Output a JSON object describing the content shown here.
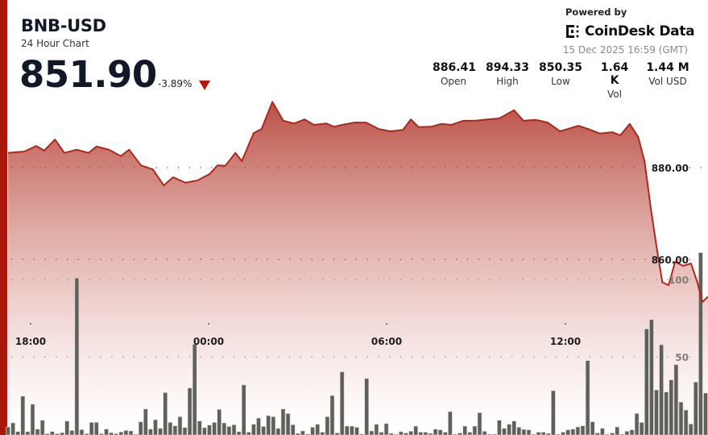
{
  "header": {
    "symbol": "BNB-USD",
    "subtitle": "24 Hour Chart",
    "price": "851.90",
    "change": "-3.89%",
    "change_direction": "down",
    "powered_by": "Powered by",
    "brand": "CoinDesk Data",
    "timestamp": "15 Dec 2025 16:59 (GMT)"
  },
  "stats": [
    {
      "value": "886.41",
      "label": "Open"
    },
    {
      "value": "894.33",
      "label": "High"
    },
    {
      "value": "850.35",
      "label": "Low"
    },
    {
      "value": "1.64 K",
      "label": "Vol"
    },
    {
      "value": "1.44 M",
      "label": "Vol USD"
    }
  ],
  "colors": {
    "accent": "#a8190c",
    "line": "#b1261a",
    "fill_top": "#b6463b",
    "volume_bar": "#5f605b",
    "down": "#b5160b"
  },
  "chart_data": {
    "type": "area",
    "price_axis": {
      "ticks": [
        "880.00",
        "860.00"
      ],
      "tick_values": [
        880,
        860
      ]
    },
    "volume_axis": {
      "ticks": [
        "100",
        "50"
      ],
      "tick_values": [
        100,
        50
      ]
    },
    "x_ticks": [
      "18:00",
      "00:00",
      "06:00",
      "12:00"
    ],
    "grid": true,
    "price_series": {
      "x": [
        "17:14",
        "17:47",
        "18:11",
        "18:27",
        "18:49",
        "19:08",
        "19:33",
        "19:57",
        "20:13",
        "20:38",
        "21:02",
        "21:19",
        "21:43",
        "22:07",
        "22:29",
        "22:48",
        "23:13",
        "23:37",
        "00:02",
        "00:18",
        "00:34",
        "00:54",
        "01:07",
        "01:31",
        "01:47",
        "02:09",
        "02:31",
        "02:53",
        "03:14",
        "03:33",
        "03:58",
        "04:14",
        "04:30",
        "04:55",
        "05:19",
        "05:44",
        "06:08",
        "06:33",
        "06:49",
        "07:05",
        "07:30",
        "07:51",
        "08:11",
        "08:35",
        "08:59",
        "09:24",
        "09:48",
        "10:18",
        "10:37",
        "11:02",
        "11:26",
        "11:51",
        "12:07",
        "12:28",
        "12:48",
        "13:12",
        "13:37",
        "13:53",
        "14:12",
        "14:29",
        "14:42",
        "14:55",
        "15:06",
        "15:18",
        "15:31",
        "15:44",
        "16:00",
        "16:16",
        "16:29",
        "16:39",
        "16:50"
      ],
      "y": [
        883.2,
        883.5,
        884.7,
        883.7,
        886.1,
        883.2,
        883.9,
        883.2,
        884.6,
        883.9,
        882.5,
        883.9,
        880.5,
        879.6,
        876.1,
        877.9,
        876.7,
        877.2,
        878.6,
        880.5,
        880.4,
        883.2,
        881.4,
        887.5,
        888.4,
        894.3,
        890.2,
        889.6,
        890.5,
        889.3,
        889.6,
        888.9,
        889.3,
        889.8,
        889.8,
        888.4,
        887.9,
        888.2,
        890.5,
        888.8,
        888.9,
        889.5,
        889.3,
        890.2,
        890.2,
        890.5,
        890.7,
        892.5,
        890.2,
        890.4,
        889.8,
        887.9,
        888.4,
        889.1,
        888.4,
        887.4,
        887.7,
        887.0,
        889.5,
        886.7,
        881.4,
        870.9,
        863.0,
        855.0,
        854.4,
        859.5,
        858.6,
        859.1,
        855.0,
        850.7,
        851.9
      ]
    },
    "volume_series": {
      "values": [
        4.7,
        7.3,
        1.7,
        24.6,
        1.6,
        19.4,
        3.3,
        9.0,
        0.3,
        1.7,
        0.3,
        1.0,
        8.5,
        2.4,
        101,
        2.9,
        0.3,
        7.6,
        7.6,
        0.3,
        3.3,
        1.0,
        0.3,
        1.4,
        2.4,
        2.1,
        0,
        8.0,
        16.3,
        3.3,
        9.4,
        3.8,
        26.9,
        7.6,
        5.4,
        11.3,
        4.3,
        29.9,
        58.2,
        8.5,
        4.2,
        5.9,
        7.6,
        16.0,
        7.3,
        5.0,
        6.1,
        1.6,
        31.9,
        1.3,
        6.4,
        10.4,
        5.0,
        12.0,
        11.3,
        3.8,
        16.3,
        13.4,
        6.1,
        0.5,
        2.1,
        0.1,
        4.5,
        6.4,
        1.3,
        11.3,
        25,
        0.8,
        40.3,
        5.2,
        5.2,
        4.5,
        0.1,
        36,
        2.1,
        6.4,
        1.3,
        6.9,
        0.5,
        0,
        1.6,
        0.8,
        1.9,
        5.2,
        1.3,
        1.3,
        0.5,
        3.3,
        2.8,
        1.3,
        14.6,
        0,
        0.8,
        5.2,
        1.3,
        5.2,
        13.9,
        1.9,
        0,
        0,
        9.0,
        3.8,
        6.4,
        8.5,
        4.5,
        3.1,
        2.8,
        0,
        1.3,
        1.3,
        0.5,
        28.1,
        0,
        1.3,
        2.8,
        3.3,
        4.7,
        5.4,
        47.6,
        8.0,
        0.8,
        3.8,
        0,
        0.8,
        4.7,
        0,
        1.9,
        2.8,
        13.4,
        7.6,
        68,
        74.1,
        28.6,
        57.8,
        27.3,
        35.1,
        45,
        20.8,
        15.6,
        6.6,
        33.7,
        117.4,
        26.6
      ]
    }
  }
}
